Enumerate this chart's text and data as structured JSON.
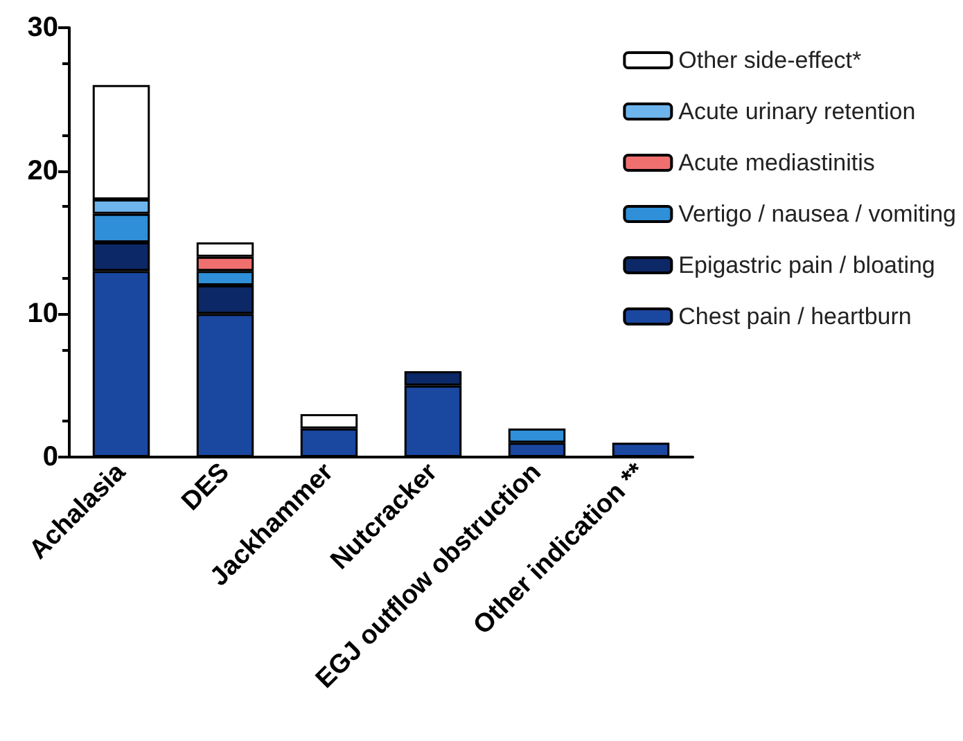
{
  "chart_data": {
    "type": "bar",
    "stacked": true,
    "categories": [
      "Achalasia",
      "DES",
      "Jackhammer",
      "Nutcracker",
      "EGJ outflow obstruction",
      "Other indication **"
    ],
    "series": [
      {
        "name": "Chest pain / heartburn",
        "color": "#1a47a0",
        "values": [
          13,
          10,
          2,
          5,
          1,
          1
        ]
      },
      {
        "name": "Epigastric pain / bloating",
        "color": "#0c2866",
        "values": [
          2,
          2,
          0,
          1,
          0,
          0
        ]
      },
      {
        "name": "Vertigo / nausea / vomiting",
        "color": "#2f8fd8",
        "values": [
          2,
          1,
          0,
          0,
          1,
          0
        ]
      },
      {
        "name": "Acute mediastinitis",
        "color": "#f07070",
        "values": [
          0,
          1,
          0,
          0,
          0,
          0
        ]
      },
      {
        "name": "Acute urinary retention",
        "color": "#6db4ec",
        "values": [
          1,
          0,
          0,
          0,
          0,
          0
        ]
      },
      {
        "name": "Other side-effect*",
        "color": "#ffffff",
        "values": [
          8,
          1,
          1,
          0,
          0,
          0
        ]
      }
    ],
    "ylim": [
      0,
      30
    ],
    "yticks": [
      0,
      10,
      20,
      30
    ],
    "grid": false,
    "legend": "top right"
  }
}
